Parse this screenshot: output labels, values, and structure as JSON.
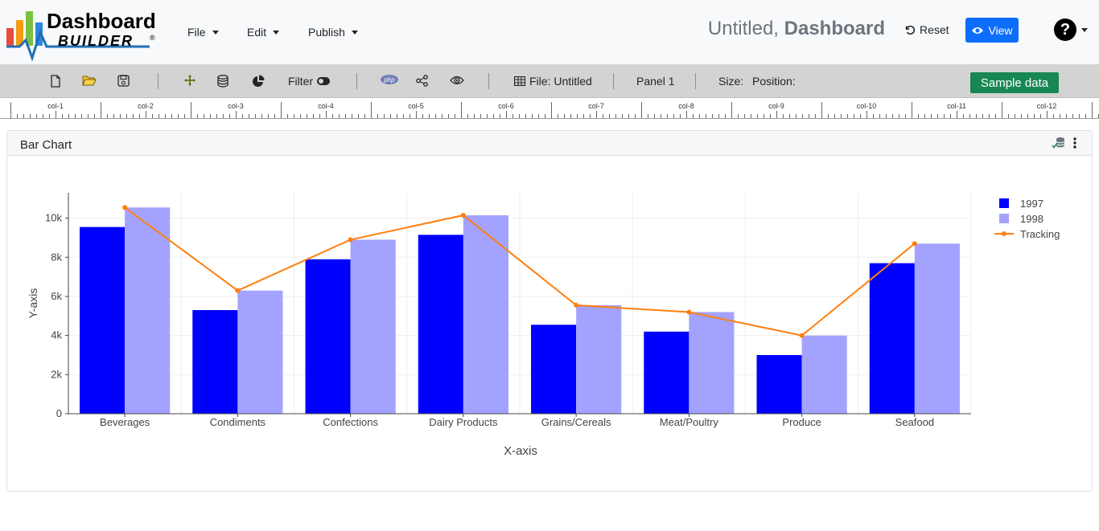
{
  "brand": {
    "line1": "Dashboard",
    "line2": "BUILDER",
    "mark": "®"
  },
  "menu": {
    "file": "File",
    "edit": "Edit",
    "publish": "Publish"
  },
  "document": {
    "name": "Untitled,",
    "type": "Dashboard"
  },
  "actions": {
    "reset": "Reset",
    "view": "View",
    "help": "?"
  },
  "toolbar": {
    "filter": "Filter",
    "php": "php",
    "file_label": "File: Untitled",
    "panel": "Panel 1",
    "size": "Size:",
    "position": "Position:",
    "sample": "Sample data"
  },
  "ruler": {
    "labels": [
      "col-1",
      "col-2",
      "col-3",
      "col-4",
      "col-5",
      "col-6",
      "col-7",
      "col-8",
      "col-9",
      "col-10",
      "col-11",
      "col-12"
    ]
  },
  "panel": {
    "title": "Bar Chart"
  },
  "colors": {
    "series_1997": "#0000ff",
    "series_1998": "#a3a3ff",
    "tracking": "#ff7f0e",
    "view_button": "#0d6efd",
    "sample_button": "#198754"
  },
  "chart_data": {
    "type": "bar",
    "categories": [
      "Beverages",
      "Condiments",
      "Confections",
      "Dairy Products",
      "Grains/Cereals",
      "Meat/Poultry",
      "Produce",
      "Seafood"
    ],
    "series": [
      {
        "name": "1997",
        "type": "bar",
        "values": [
          9550,
          5300,
          7900,
          9150,
          4550,
          4200,
          3000,
          7700
        ]
      },
      {
        "name": "1998",
        "type": "bar",
        "values": [
          10550,
          6300,
          8900,
          10150,
          5550,
          5200,
          4000,
          8700
        ]
      },
      {
        "name": "Tracking",
        "type": "line",
        "values": [
          10550,
          6300,
          8900,
          10150,
          5550,
          5200,
          4000,
          8700
        ]
      }
    ],
    "xlabel": "X-axis",
    "ylabel": "Y-axis",
    "ylim": [
      0,
      11300
    ],
    "yticks": [
      0,
      2000,
      4000,
      6000,
      8000,
      10000
    ],
    "ytick_labels": [
      "0",
      "2k",
      "4k",
      "6k",
      "8k",
      "10k"
    ],
    "grid": true,
    "legend_position": "top-right"
  }
}
